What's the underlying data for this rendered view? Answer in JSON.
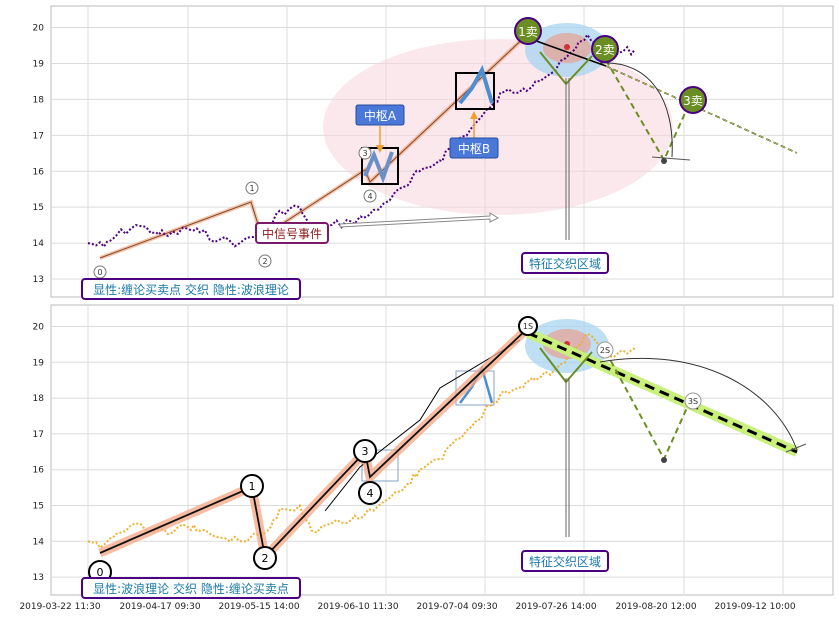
{
  "chart_data": [
    {
      "type": "line",
      "ylim": [
        12.5,
        20.6
      ],
      "yticks": [
        13,
        14,
        15,
        16,
        17,
        18,
        19,
        20
      ],
      "grid": true,
      "series": [
        {
          "name": "",
          "color": "#4b0082",
          "style": "dotted",
          "x": [
            "2019-03-22",
            "2019-03-26",
            "2019-03-29",
            "2019-04-03",
            "2019-04-08",
            "2019-04-11",
            "2019-04-16",
            "2019-04-19",
            "2019-04-24",
            "2019-04-29",
            "2019-05-06",
            "2019-05-09",
            "2019-05-14",
            "2019-05-17",
            "2019-05-22",
            "2019-05-27",
            "2019-05-30",
            "2019-06-04",
            "2019-06-10",
            "2019-06-13",
            "2019-06-18",
            "2019-06-21",
            "2019-06-26",
            "2019-07-01",
            "2019-07-04",
            "2019-07-09",
            "2019-07-12",
            "2019-07-17",
            "2019-07-22",
            "2019-07-25",
            "2019-07-30",
            "2019-08-02",
            "2019-08-06"
          ],
          "y": [
            14.0,
            13.9,
            14.2,
            14.5,
            14.3,
            14.2,
            14.4,
            14.3,
            14.1,
            14.0,
            14.3,
            14.9,
            15.0,
            14.3,
            14.5,
            14.6,
            14.7,
            15.1,
            15.6,
            16.0,
            16.3,
            16.7,
            17.2,
            17.8,
            18.2,
            18.3,
            18.5,
            18.8,
            19.4,
            19.8,
            19.2,
            19.3,
            19.4
          ]
        }
      ],
      "wave_points": [
        {
          "label": "0",
          "x": "2019-03-24",
          "y": 13.1
        },
        {
          "label": "1",
          "x": "2019-05-10",
          "y": 15.6
        },
        {
          "label": "2",
          "x": "2019-05-15",
          "y": 13.3
        },
        {
          "label": "3",
          "x": "2019-06-10",
          "y": 16.5
        },
        {
          "label": "4",
          "x": "2019-06-11",
          "y": 15.5
        }
      ],
      "buy_sell_points": [
        {
          "label": "1卖",
          "x": "2019-07-26",
          "y": 20.0
        },
        {
          "label": "2卖",
          "x": "2019-08-05",
          "y": 19.4
        },
        {
          "label": "3卖",
          "x": "2019-08-29",
          "y": 18.0
        }
      ],
      "centers": [
        {
          "label": "中枢A",
          "x0": "2019-06-11",
          "x1": "2019-06-14",
          "y0": 15.6,
          "y1": 16.5
        },
        {
          "label": "中枢B",
          "x0": "2019-07-05",
          "x1": "2019-07-10",
          "y0": 17.8,
          "y1": 18.8
        }
      ],
      "annotations": [
        "中信号事件",
        "特征交织区域"
      ],
      "caption": "显性:缠论买卖点 交织 隐性:波浪理论"
    },
    {
      "type": "line",
      "ylim": [
        12.5,
        20.6
      ],
      "yticks": [
        13,
        14,
        15,
        16,
        17,
        18,
        19,
        20
      ],
      "grid": true,
      "series": [
        {
          "name": "",
          "color": "#f0b030",
          "style": "dotted",
          "x": [
            "2019-03-22",
            "2019-03-26",
            "2019-03-29",
            "2019-04-03",
            "2019-04-08",
            "2019-04-11",
            "2019-04-16",
            "2019-04-19",
            "2019-04-24",
            "2019-04-29",
            "2019-05-06",
            "2019-05-09",
            "2019-05-14",
            "2019-05-17",
            "2019-05-22",
            "2019-05-27",
            "2019-05-30",
            "2019-06-04",
            "2019-06-10",
            "2019-06-13",
            "2019-06-18",
            "2019-06-21",
            "2019-06-26",
            "2019-07-01",
            "2019-07-04",
            "2019-07-09",
            "2019-07-12",
            "2019-07-17",
            "2019-07-22",
            "2019-07-25",
            "2019-07-30",
            "2019-08-02",
            "2019-08-06"
          ],
          "y": [
            14.0,
            13.9,
            14.2,
            14.5,
            14.3,
            14.2,
            14.4,
            14.3,
            14.1,
            14.0,
            14.3,
            14.9,
            15.0,
            14.3,
            14.5,
            14.6,
            14.7,
            15.1,
            15.6,
            16.0,
            16.3,
            16.7,
            17.2,
            17.8,
            18.2,
            18.3,
            18.5,
            18.8,
            19.4,
            19.8,
            19.2,
            19.3,
            19.4
          ]
        }
      ],
      "wave_points": [
        {
          "label": "0",
          "x": "2019-03-23",
          "y": 12.9
        },
        {
          "label": "1",
          "x": "2019-05-10",
          "y": 15.5
        },
        {
          "label": "2",
          "x": "2019-05-15",
          "y": 13.3
        },
        {
          "label": "3",
          "x": "2019-06-09",
          "y": 16.5
        },
        {
          "label": "4",
          "x": "2019-06-11",
          "y": 15.3
        }
      ],
      "sell_points": [
        {
          "label": "1S",
          "x": "2019-07-26",
          "y": 19.9
        },
        {
          "label": "2S",
          "x": "2019-08-05",
          "y": 19.3
        },
        {
          "label": "3S",
          "x": "2019-08-29",
          "y": 17.9
        }
      ],
      "annotations": [
        "特征交织区域"
      ],
      "caption": "显性:波浪理论 交织 隐性:缠论买卖点"
    }
  ],
  "x_tick_labels": [
    "2019-03-22 11:30",
    "2019-04-17 09:30",
    "2019-05-15 14:00",
    "2019-06-10 11:30",
    "2019-07-04 09:30",
    "2019-07-26 14:00",
    "2019-08-20 12:00",
    "2019-09-12 10:00"
  ],
  "colors": {
    "purple": "#4b0082",
    "orange": "#f0b030",
    "olive": "#6b8e23",
    "blue_box": "#3a6fd8",
    "ellipse_pink": "#f7d6dc",
    "ellipse_blue": "#a8d4f0",
    "salmon": "#f4a582",
    "lime": "#c8f07a"
  }
}
